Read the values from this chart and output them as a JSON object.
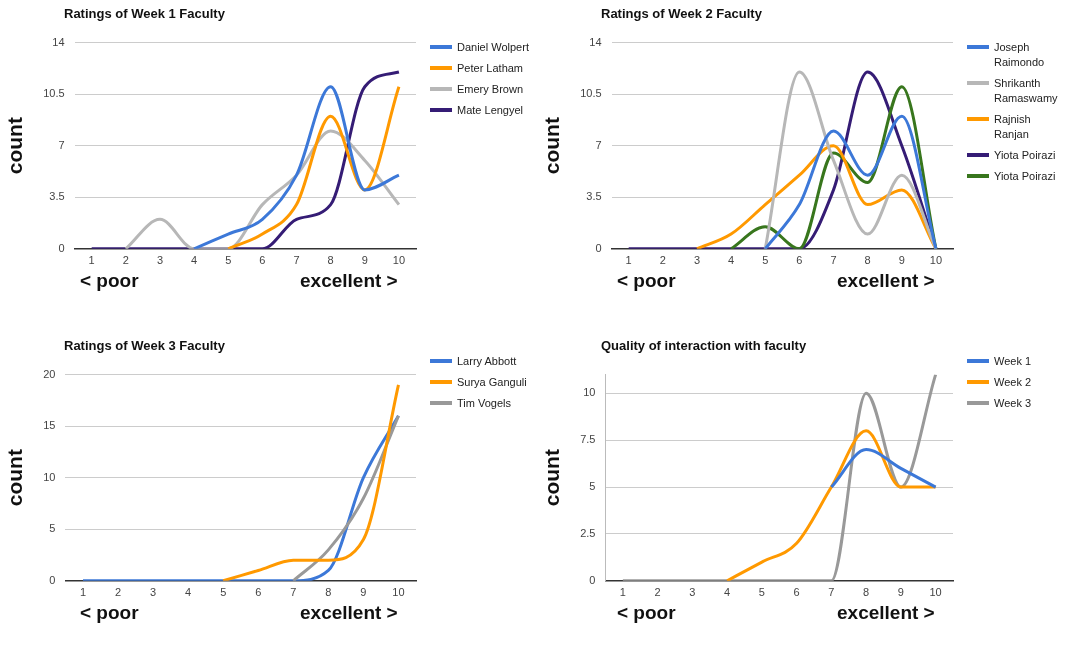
{
  "chart_data": [
    {
      "type": "line",
      "title": "Ratings of Week 1 Faculty",
      "ylabel": "count",
      "categories": [
        "1",
        "2",
        "3",
        "4",
        "5",
        "6",
        "7",
        "8",
        "9",
        "10"
      ],
      "ylim": [
        0,
        14
      ],
      "yticks": [
        0,
        3.5,
        7,
        10.5,
        14
      ],
      "grid": "y",
      "legend": "right",
      "annotations": [
        "< poor",
        "excellent >"
      ],
      "series": [
        {
          "name": "Daniel Wolpert",
          "color": "#3c78d8",
          "values": [
            null,
            null,
            null,
            0,
            1,
            2,
            5,
            11,
            4,
            5
          ]
        },
        {
          "name": "Peter Latham",
          "color": "#ff9900",
          "values": [
            null,
            null,
            null,
            null,
            0,
            1,
            3,
            9,
            4,
            11
          ]
        },
        {
          "name": "Emery Brown",
          "color": "#b7b7b7",
          "values": [
            null,
            0,
            2,
            0,
            0,
            3,
            5,
            8,
            6,
            3
          ]
        },
        {
          "name": "Mate Lengyel",
          "color": "#351c75",
          "values": [
            0,
            0,
            0,
            0,
            0,
            0,
            2,
            3,
            11,
            12
          ]
        }
      ]
    },
    {
      "type": "line",
      "title": "Ratings of Week 2 Faculty",
      "ylabel": "count",
      "categories": [
        "1",
        "2",
        "3",
        "4",
        "5",
        "6",
        "7",
        "8",
        "9",
        "10"
      ],
      "ylim": [
        0,
        14
      ],
      "yticks": [
        0,
        3.5,
        7,
        10.5,
        14
      ],
      "grid": "y",
      "legend": "right",
      "annotations": [
        "< poor",
        "excellent >"
      ],
      "series": [
        {
          "name": "Joseph Raimondo",
          "color": "#3c78d8",
          "values": [
            null,
            null,
            null,
            null,
            0,
            3,
            8,
            5,
            9,
            0
          ]
        },
        {
          "name": "Shrikanth Ramaswamy",
          "color": "#b7b7b7",
          "values": [
            null,
            null,
            null,
            null,
            0,
            12,
            6,
            1,
            5,
            0
          ]
        },
        {
          "name": "Rajnish Ranjan",
          "color": "#ff9900",
          "values": [
            null,
            null,
            0,
            1,
            3,
            5,
            7,
            3,
            4,
            0
          ]
        },
        {
          "name": "Yiota Poirazi",
          "color": "#351c75",
          "values": [
            0,
            0,
            0,
            0,
            0,
            0,
            4,
            12,
            7,
            0
          ]
        },
        {
          "name": "Yiota Poirazi",
          "color": "#38761d",
          "values": [
            null,
            null,
            null,
            0,
            1.5,
            0,
            6.5,
            4.5,
            11,
            0
          ]
        }
      ]
    },
    {
      "type": "line",
      "title": "Ratings of Week 3 Faculty",
      "ylabel": "count",
      "categories": [
        "1",
        "2",
        "3",
        "4",
        "5",
        "6",
        "7",
        "8",
        "9",
        "10"
      ],
      "ylim": [
        0,
        20
      ],
      "yticks": [
        0,
        5,
        10,
        15,
        20
      ],
      "grid": "y",
      "legend": "top right",
      "annotations": [
        "< poor",
        "excellent >"
      ],
      "series": [
        {
          "name": "Larry Abbott",
          "color": "#3c78d8",
          "values": [
            0,
            0,
            0,
            0,
            0,
            0,
            0,
            1,
            10,
            16
          ]
        },
        {
          "name": "Surya Ganguli",
          "color": "#ff9900",
          "values": [
            null,
            null,
            null,
            null,
            0,
            1,
            2,
            2,
            4,
            19
          ]
        },
        {
          "name": "Tim Vogels",
          "color": "#999999",
          "values": [
            null,
            null,
            null,
            null,
            null,
            null,
            0,
            3,
            8,
            16
          ]
        }
      ]
    },
    {
      "type": "line",
      "title": "Quality of interaction with faculty",
      "ylabel": "count",
      "categories": [
        "1",
        "2",
        "3",
        "4",
        "5",
        "6",
        "7",
        "8",
        "9",
        "10"
      ],
      "ylim": [
        0,
        11
      ],
      "yticks": [
        0,
        2.5,
        5,
        7.5,
        10
      ],
      "grid": "y",
      "legend": "top right",
      "annotations": [
        "< poor",
        "excellent >"
      ],
      "series": [
        {
          "name": "Week 1",
          "color": "#3c78d8",
          "values": [
            null,
            null,
            null,
            null,
            null,
            null,
            5,
            7,
            6,
            5
          ]
        },
        {
          "name": "Week 2",
          "color": "#ff9900",
          "values": [
            null,
            null,
            null,
            0,
            1,
            2,
            5,
            8,
            5,
            5
          ]
        },
        {
          "name": "Week 3",
          "color": "#999999",
          "values": [
            0,
            0,
            0,
            0,
            0,
            0,
            0,
            10,
            5,
            11
          ]
        }
      ]
    }
  ]
}
